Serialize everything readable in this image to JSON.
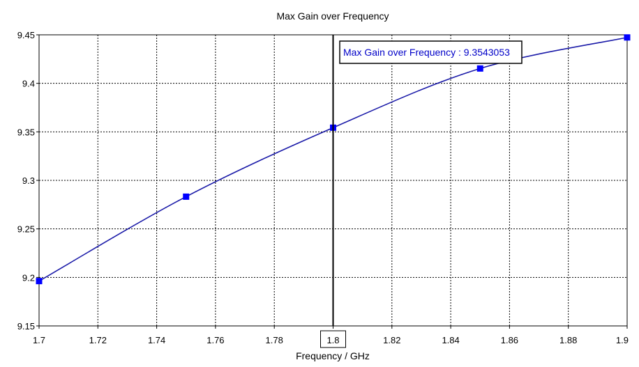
{
  "chart_data": {
    "type": "line",
    "title": "Max Gain over Frequency",
    "xlabel": "Frequency / GHz",
    "ylabel": "",
    "xlim": [
      1.7,
      1.9
    ],
    "ylim": [
      9.15,
      9.45
    ],
    "xticks": [
      "1.7",
      "1.72",
      "1.74",
      "1.76",
      "1.78",
      "1.8",
      "1.82",
      "1.84",
      "1.86",
      "1.88",
      "1.9"
    ],
    "yticks": [
      "9.15",
      "9.2",
      "9.25",
      "9.3",
      "9.35",
      "9.4",
      "9.45"
    ],
    "grid": true,
    "series": [
      {
        "color": "#1a1aa8",
        "marker_color": "#0000ff",
        "x": [
          1.7,
          1.75,
          1.8,
          1.85,
          1.9
        ],
        "y": [
          9.1962,
          9.2832,
          9.3543053,
          9.4153,
          9.4473
        ]
      }
    ],
    "cursor": {
      "x": 1.8,
      "x_label": "1.8",
      "readout": "Max Gain over Frequency : 9.3543053",
      "readout_color": "#0000c8"
    }
  }
}
